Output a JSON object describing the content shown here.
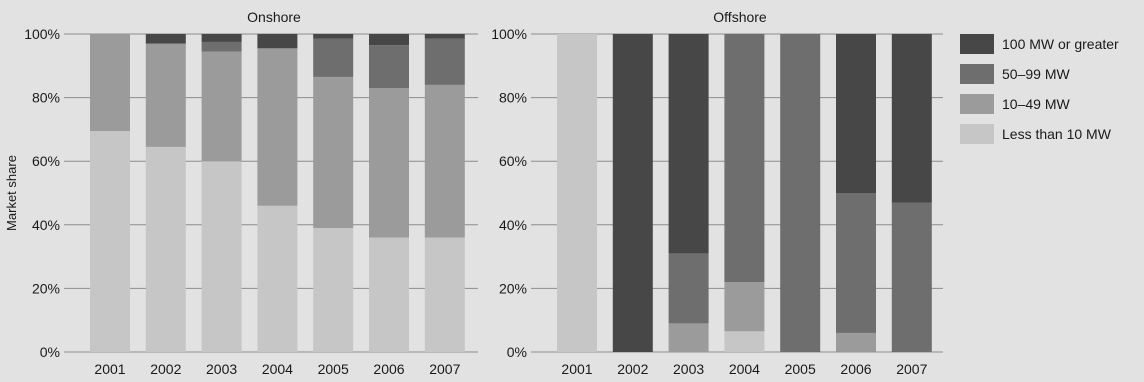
{
  "chart_data": [
    {
      "type": "bar",
      "stacked": true,
      "title": "Onshore",
      "ylabel": "Market share",
      "ylim": [
        0,
        100
      ],
      "yticks": [
        "0%",
        "20%",
        "40%",
        "60%",
        "80%",
        "100%"
      ],
      "grid": "horizontal",
      "categories": [
        "2001",
        "2002",
        "2003",
        "2004",
        "2005",
        "2006",
        "2007"
      ],
      "series": [
        {
          "name": "Less than 10 MW",
          "color": "#c6c6c6",
          "values": [
            69.5,
            64.5,
            60,
            46,
            39,
            36,
            36
          ]
        },
        {
          "name": "10–49 MW",
          "color": "#9b9b9b",
          "values": [
            30.5,
            32.5,
            34.5,
            49.5,
            47.5,
            47,
            48
          ]
        },
        {
          "name": "50–99 MW",
          "color": "#6e6e6e",
          "values": [
            0,
            0,
            3,
            0,
            12,
            13.5,
            14.5
          ]
        },
        {
          "name": "100 MW or greater",
          "color": "#474747",
          "values": [
            0,
            3,
            2.5,
            4.5,
            1.5,
            3.5,
            1.5
          ]
        }
      ]
    },
    {
      "type": "bar",
      "stacked": true,
      "title": "Offshore",
      "ylim": [
        0,
        100
      ],
      "yticks": [
        "0%",
        "20%",
        "40%",
        "60%",
        "80%",
        "100%"
      ],
      "grid": "horizontal",
      "categories": [
        "2001",
        "2002",
        "2003",
        "2004",
        "2005",
        "2006",
        "2007"
      ],
      "series": [
        {
          "name": "Less than 10 MW",
          "color": "#c6c6c6",
          "values": [
            100,
            0,
            0,
            6.5,
            0,
            0,
            0
          ]
        },
        {
          "name": "10–49 MW",
          "color": "#9b9b9b",
          "values": [
            0,
            0,
            9,
            15.5,
            0,
            6,
            0
          ]
        },
        {
          "name": "50–99 MW",
          "color": "#6e6e6e",
          "values": [
            0,
            0,
            22,
            78,
            100,
            44,
            47
          ]
        },
        {
          "name": "100 MW or greater",
          "color": "#474747",
          "values": [
            0,
            100,
            69,
            0,
            0,
            50,
            53
          ]
        }
      ]
    }
  ],
  "legend": {
    "placement": "right",
    "items": [
      {
        "label": "100 MW or greater",
        "color": "#474747"
      },
      {
        "label": "50–99 MW",
        "color": "#6e6e6e"
      },
      {
        "label": "10–49 MW",
        "color": "#9b9b9b"
      },
      {
        "label": "Less than 10 MW",
        "color": "#c6c6c6"
      }
    ]
  }
}
